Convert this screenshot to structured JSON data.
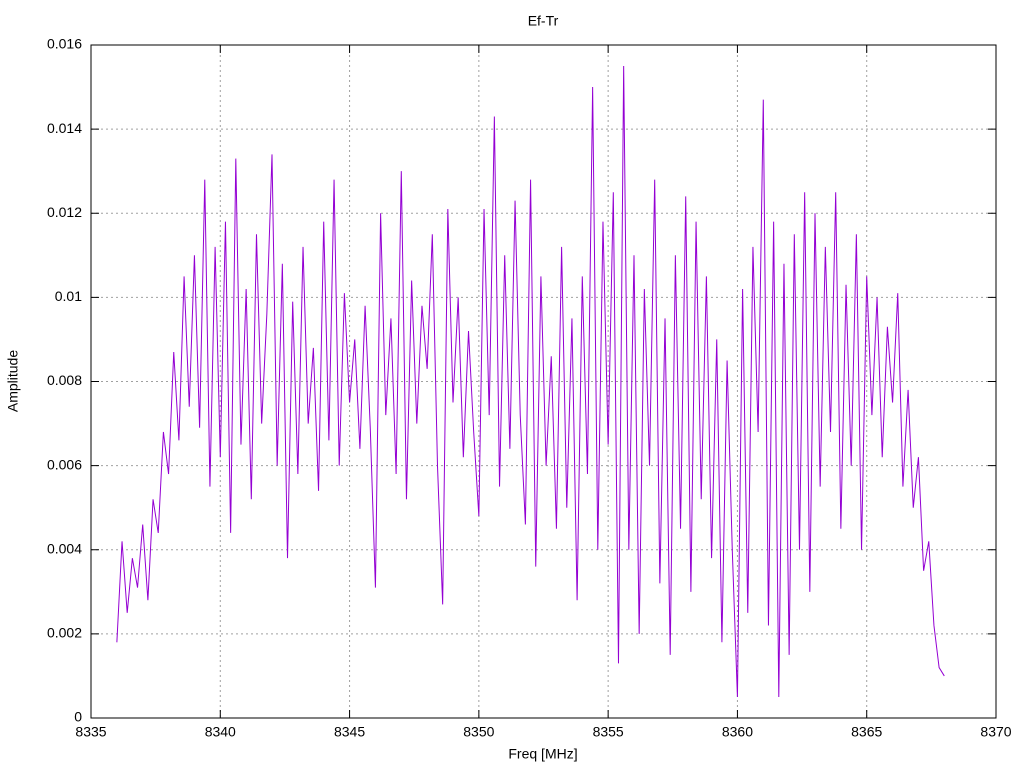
{
  "chart_data": {
    "type": "line",
    "title": "Ef-Tr",
    "x_label": "Freq [MHz]",
    "y_label": "Amplitude",
    "color": "#9400d3",
    "grid": true,
    "xlim": [
      8335,
      8370
    ],
    "xticks": [
      8335,
      8340,
      8345,
      8350,
      8355,
      8360,
      8365,
      8370
    ],
    "ylim": [
      0,
      0.016
    ],
    "yticks": [
      0,
      0.002,
      0.004,
      0.006,
      0.008,
      0.01,
      0.012,
      0.014,
      0.016
    ],
    "x": [
      8336.0,
      8336.2,
      8336.4,
      8336.6,
      8336.8,
      8337.0,
      8337.2,
      8337.4,
      8337.6,
      8337.8,
      8338.0,
      8338.2,
      8338.4,
      8338.6,
      8338.8,
      8339.0,
      8339.2,
      8339.4,
      8339.6,
      8339.8,
      8340.0,
      8340.2,
      8340.4,
      8340.6,
      8340.8,
      8341.0,
      8341.2,
      8341.4,
      8341.6,
      8341.8,
      8342.0,
      8342.2,
      8342.4,
      8342.6,
      8342.8,
      8343.0,
      8343.2,
      8343.4,
      8343.6,
      8343.8,
      8344.0,
      8344.2,
      8344.4,
      8344.6,
      8344.8,
      8345.0,
      8345.2,
      8345.4,
      8345.6,
      8345.8,
      8346.0,
      8346.2,
      8346.4,
      8346.6,
      8346.8,
      8347.0,
      8347.2,
      8347.4,
      8347.6,
      8347.8,
      8348.0,
      8348.2,
      8348.4,
      8348.6,
      8348.8,
      8349.0,
      8349.2,
      8349.4,
      8349.6,
      8349.8,
      8350.0,
      8350.2,
      8350.4,
      8350.6,
      8350.8,
      8351.0,
      8351.2,
      8351.4,
      8351.6,
      8351.8,
      8352.0,
      8352.2,
      8352.4,
      8352.6,
      8352.8,
      8353.0,
      8353.2,
      8353.4,
      8353.6,
      8353.8,
      8354.0,
      8354.2,
      8354.4,
      8354.6,
      8354.8,
      8355.0,
      8355.2,
      8355.4,
      8355.6,
      8355.8,
      8356.0,
      8356.2,
      8356.4,
      8356.6,
      8356.8,
      8357.0,
      8357.2,
      8357.4,
      8357.6,
      8357.8,
      8358.0,
      8358.2,
      8358.4,
      8358.6,
      8358.8,
      8359.0,
      8359.2,
      8359.4,
      8359.6,
      8359.8,
      8360.0,
      8360.2,
      8360.4,
      8360.6,
      8360.8,
      8361.0,
      8361.2,
      8361.4,
      8361.6,
      8361.8,
      8362.0,
      8362.2,
      8362.4,
      8362.6,
      8362.8,
      8363.0,
      8363.2,
      8363.4,
      8363.6,
      8363.8,
      8364.0,
      8364.2,
      8364.4,
      8364.6,
      8364.8,
      8365.0,
      8365.2,
      8365.4,
      8365.6,
      8365.8,
      8366.0,
      8366.2,
      8366.4,
      8366.6,
      8366.8,
      8367.0,
      8367.2,
      8367.4,
      8367.6,
      8367.8,
      8368.0
    ],
    "values": [
      0.0018,
      0.0042,
      0.0025,
      0.0038,
      0.0031,
      0.0046,
      0.0028,
      0.0052,
      0.0044,
      0.0068,
      0.0058,
      0.0087,
      0.0066,
      0.0105,
      0.0074,
      0.011,
      0.0069,
      0.0128,
      0.0055,
      0.0112,
      0.0062,
      0.0118,
      0.0044,
      0.0133,
      0.0065,
      0.0102,
      0.0052,
      0.0115,
      0.007,
      0.0096,
      0.0134,
      0.006,
      0.0108,
      0.0038,
      0.0099,
      0.0058,
      0.0112,
      0.007,
      0.0088,
      0.0054,
      0.0118,
      0.0066,
      0.0128,
      0.006,
      0.0101,
      0.0075,
      0.009,
      0.0064,
      0.0098,
      0.0069,
      0.0031,
      0.012,
      0.0072,
      0.0095,
      0.0058,
      0.013,
      0.0052,
      0.0104,
      0.007,
      0.0098,
      0.0083,
      0.0115,
      0.006,
      0.0027,
      0.0121,
      0.0075,
      0.01,
      0.0062,
      0.0092,
      0.0068,
      0.0048,
      0.0121,
      0.0072,
      0.0143,
      0.0055,
      0.011,
      0.0064,
      0.0123,
      0.0072,
      0.0046,
      0.0128,
      0.0036,
      0.0105,
      0.006,
      0.0086,
      0.0045,
      0.0112,
      0.005,
      0.0095,
      0.0028,
      0.0105,
      0.0058,
      0.015,
      0.004,
      0.0118,
      0.0065,
      0.0125,
      0.0013,
      0.0155,
      0.004,
      0.011,
      0.002,
      0.0102,
      0.006,
      0.0128,
      0.0032,
      0.0095,
      0.0015,
      0.011,
      0.0045,
      0.0124,
      0.003,
      0.0118,
      0.0052,
      0.0105,
      0.0038,
      0.009,
      0.0018,
      0.0085,
      0.004,
      0.0005,
      0.0102,
      0.0025,
      0.0112,
      0.0068,
      0.0147,
      0.0022,
      0.0118,
      0.0005,
      0.0108,
      0.0015,
      0.0115,
      0.004,
      0.0125,
      0.003,
      0.012,
      0.0055,
      0.0112,
      0.0068,
      0.0125,
      0.0045,
      0.0103,
      0.006,
      0.0115,
      0.004,
      0.0105,
      0.0072,
      0.01,
      0.0062,
      0.0093,
      0.0075,
      0.0101,
      0.0055,
      0.0078,
      0.005,
      0.0062,
      0.0035,
      0.0042,
      0.0022,
      0.0012,
      0.001
    ]
  }
}
